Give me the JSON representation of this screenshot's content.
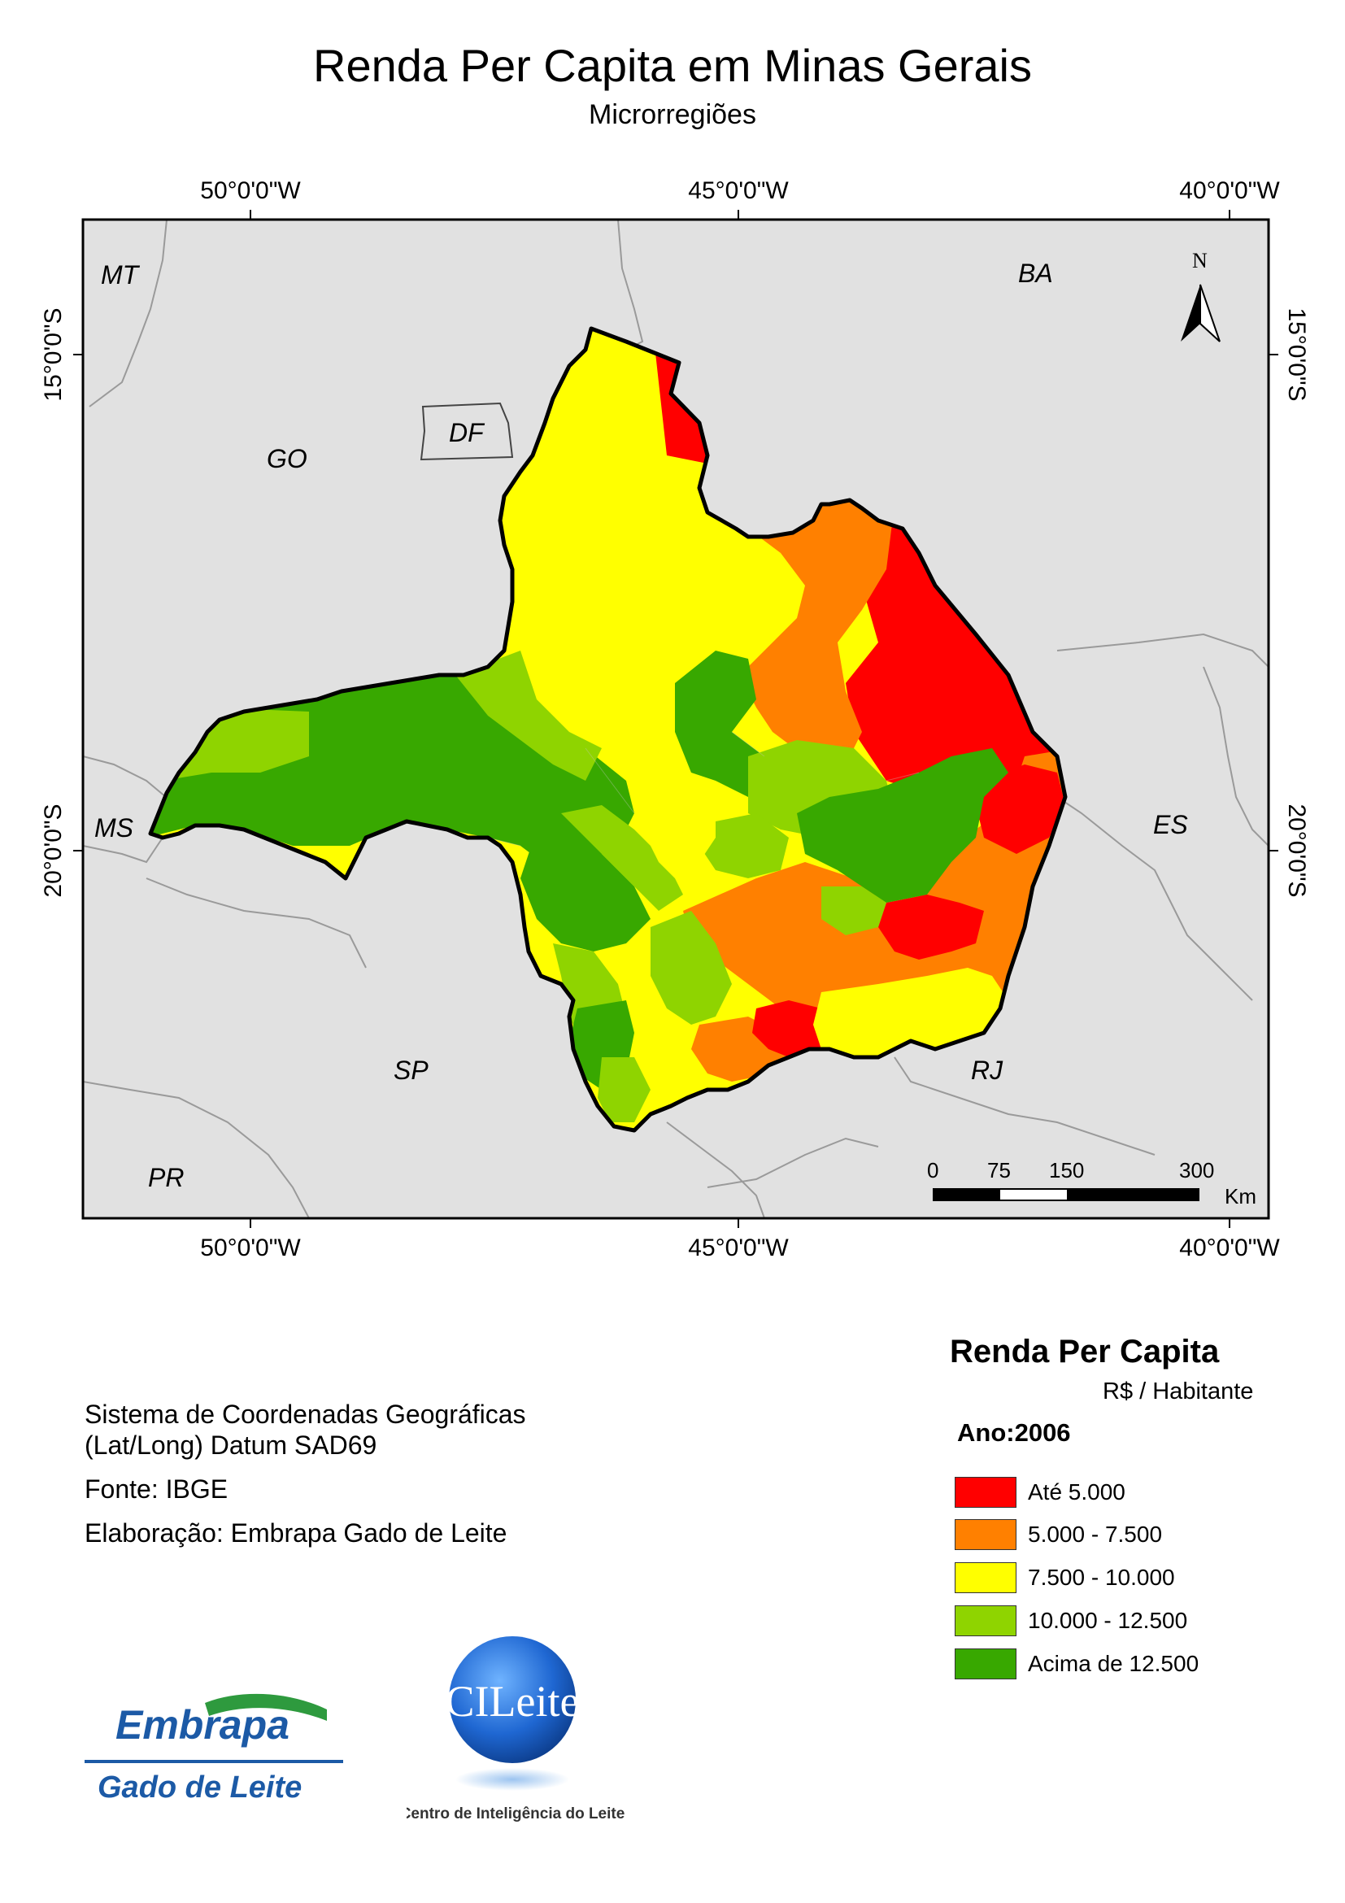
{
  "title": "Renda Per Capita em Minas Gerais",
  "subtitle": "Microrregiões",
  "graticule": {
    "longitude_labels": [
      "50°0'0\"W",
      "45°0'0\"W",
      "40°0'0\"W"
    ],
    "latitude_labels": [
      "15°0'0\"S",
      "20°0'0\"S"
    ]
  },
  "map_labels": {
    "states": [
      "MT",
      "BA",
      "GO",
      "DF",
      "MS",
      "ES",
      "SP",
      "RJ",
      "PR"
    ],
    "north_arrow": "N"
  },
  "scale_bar": {
    "ticks": [
      "0",
      "75",
      "150",
      "300"
    ],
    "unit": "Km"
  },
  "info": {
    "coord_line1": "Sistema de Coordenadas Geográficas",
    "coord_line2": "(Lat/Long) Datum SAD69",
    "source": "Fonte: IBGE",
    "author": "Elaboração: Embrapa Gado de Leite"
  },
  "legend": {
    "title": "Renda Per Capita",
    "unit": "R$ / Habitante",
    "year": "Ano:2006",
    "items": [
      {
        "label": "Até 5.000",
        "color": "#ff0000"
      },
      {
        "label": "5.000 - 7.500",
        "color": "#ff8000"
      },
      {
        "label": "7.500 - 10.000",
        "color": "#ffff00"
      },
      {
        "label": "10.000 - 12.500",
        "color": "#8fd400"
      },
      {
        "label": "Acima de 12.500",
        "color": "#38a800"
      }
    ]
  },
  "logos": {
    "embrapa_word": "Embrapa",
    "embrapa_sub": "Gado de Leite",
    "cileite_word": "CILeite",
    "cileite_sub": "Centro de Inteligência do Leite"
  },
  "colors": {
    "background_states": "#e1e1e1",
    "border": "#000000"
  }
}
